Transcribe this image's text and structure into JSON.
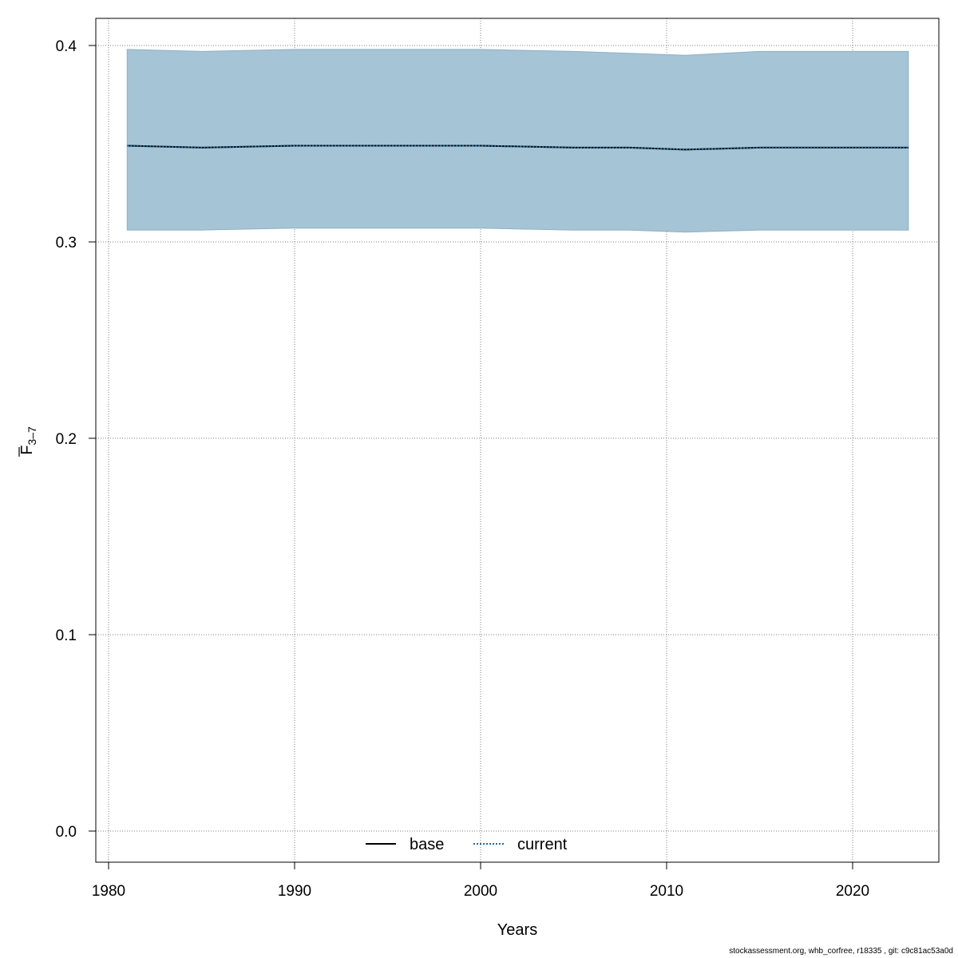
{
  "chart_data": {
    "type": "line",
    "xlabel": "Years",
    "ylabel_main": "F",
    "ylabel_sub": "3–7",
    "xlim": [
      1980,
      2024
    ],
    "ylim": [
      0.0,
      0.4
    ],
    "x_ticks": [
      1980,
      1990,
      2000,
      2010,
      2020
    ],
    "y_ticks": [
      0.0,
      0.1,
      0.2,
      0.3,
      0.4
    ],
    "grid": true,
    "legend_position": "bottom-center",
    "colors": {
      "band": "#a5c4d5",
      "band_edge": "#8fb1c4",
      "base": "#000000",
      "current": "#1f6b9a",
      "grid": "#808080"
    },
    "x": [
      1981,
      1985,
      1990,
      1995,
      2000,
      2005,
      2008,
      2011,
      2015,
      2020,
      2023
    ],
    "band_upper": [
      0.398,
      0.397,
      0.398,
      0.398,
      0.398,
      0.397,
      0.396,
      0.395,
      0.397,
      0.397,
      0.397
    ],
    "band_lower": [
      0.306,
      0.306,
      0.307,
      0.307,
      0.307,
      0.306,
      0.306,
      0.305,
      0.306,
      0.306,
      0.306
    ],
    "series": [
      {
        "name": "base",
        "style": "solid",
        "values": [
          0.349,
          0.348,
          0.349,
          0.349,
          0.349,
          0.348,
          0.348,
          0.347,
          0.348,
          0.348,
          0.348
        ]
      },
      {
        "name": "current",
        "style": "dotted",
        "values": [
          0.349,
          0.348,
          0.349,
          0.349,
          0.349,
          0.348,
          0.348,
          0.347,
          0.348,
          0.348,
          0.348
        ]
      }
    ]
  },
  "footer": "stockassessment.org, whb_corfree, r18335 , git: c9c81ac53a0d"
}
